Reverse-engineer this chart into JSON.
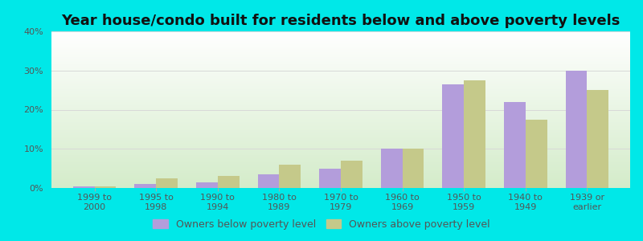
{
  "title": "Year house/condo built for residents below and above poverty levels",
  "categories": [
    "1999 to\n2000",
    "1995 to\n1998",
    "1990 to\n1994",
    "1980 to\n1989",
    "1970 to\n1979",
    "1960 to\n1969",
    "1950 to\n1959",
    "1940 to\n1949",
    "1939 or\nearlier"
  ],
  "below_poverty": [
    0.5,
    1.0,
    1.5,
    3.5,
    5.0,
    10.0,
    26.5,
    22.0,
    30.0
  ],
  "above_poverty": [
    0.5,
    2.5,
    3.0,
    6.0,
    7.0,
    10.0,
    27.5,
    17.5,
    25.0
  ],
  "below_color": "#b39ddb",
  "above_color": "#c5c98a",
  "ylim": [
    0,
    40
  ],
  "yticks": [
    0,
    10,
    20,
    30,
    40
  ],
  "ytick_labels": [
    "0%",
    "10%",
    "20%",
    "30%",
    "40%"
  ],
  "background_outer": "#00e8e8",
  "grid_color": "#d8d8d8",
  "title_fontsize": 13,
  "tick_fontsize": 8,
  "legend_fontsize": 9,
  "bar_width": 0.35,
  "legend_below_label": "Owners below poverty level",
  "legend_above_label": "Owners above poverty level"
}
